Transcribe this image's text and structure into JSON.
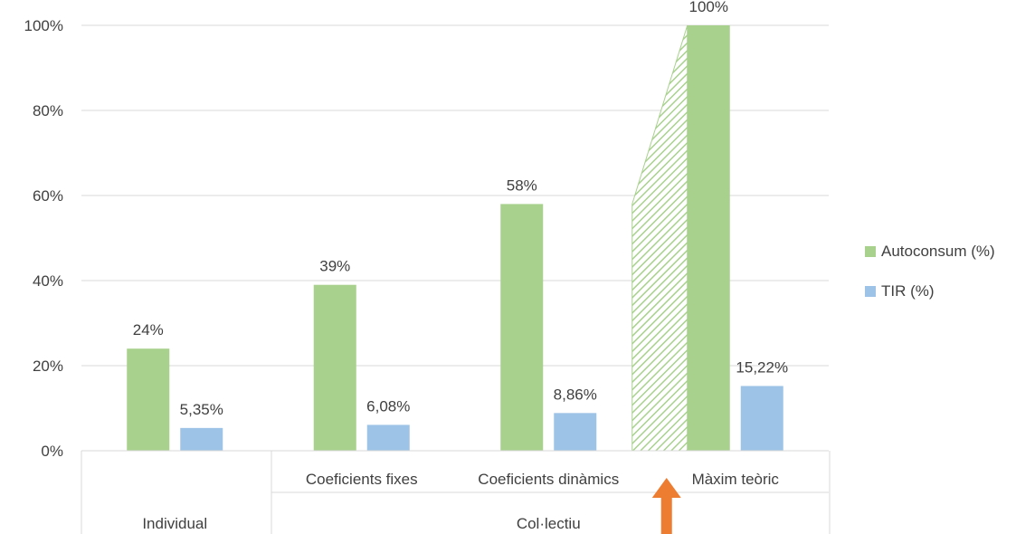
{
  "chart_data": {
    "type": "bar",
    "categories": [
      "Individual",
      "Coeficients fixes",
      "Coeficients dinàmics",
      "Màxim teòric"
    ],
    "category_groups": [
      {
        "label": "Individual",
        "categories": [
          "Individual"
        ]
      },
      {
        "label": "Col·lectiu",
        "categories": [
          "Coeficients fixes",
          "Coeficients dinàmics",
          "Màxim teòric"
        ]
      }
    ],
    "series": [
      {
        "name": "Autoconsum (%)",
        "values": [
          24,
          39,
          58,
          100
        ],
        "labels": [
          "24%",
          "39%",
          "58%",
          "100%"
        ],
        "color": "#a9d18e"
      },
      {
        "name": "TIR (%)",
        "values": [
          5.35,
          6.08,
          8.86,
          15.22
        ],
        "labels": [
          "5,35%",
          "6,08%",
          "8,86%",
          "15,22%"
        ],
        "color": "#9dc3e6"
      }
    ],
    "ylim": [
      0,
      100
    ],
    "yticks": [
      0,
      20,
      40,
      60,
      80,
      100
    ],
    "ytick_labels": [
      "0%",
      "20%",
      "40%",
      "60%",
      "80%",
      "100%"
    ],
    "grid": true,
    "legend": "right",
    "annotations": {
      "hatched_extension": {
        "category": "Màxim teòric",
        "from": 58,
        "to": 100,
        "color": "#a9d18e"
      },
      "arrow": {
        "category": "Màxim teòric",
        "direction": "up",
        "color": "#ed7d31"
      }
    }
  }
}
